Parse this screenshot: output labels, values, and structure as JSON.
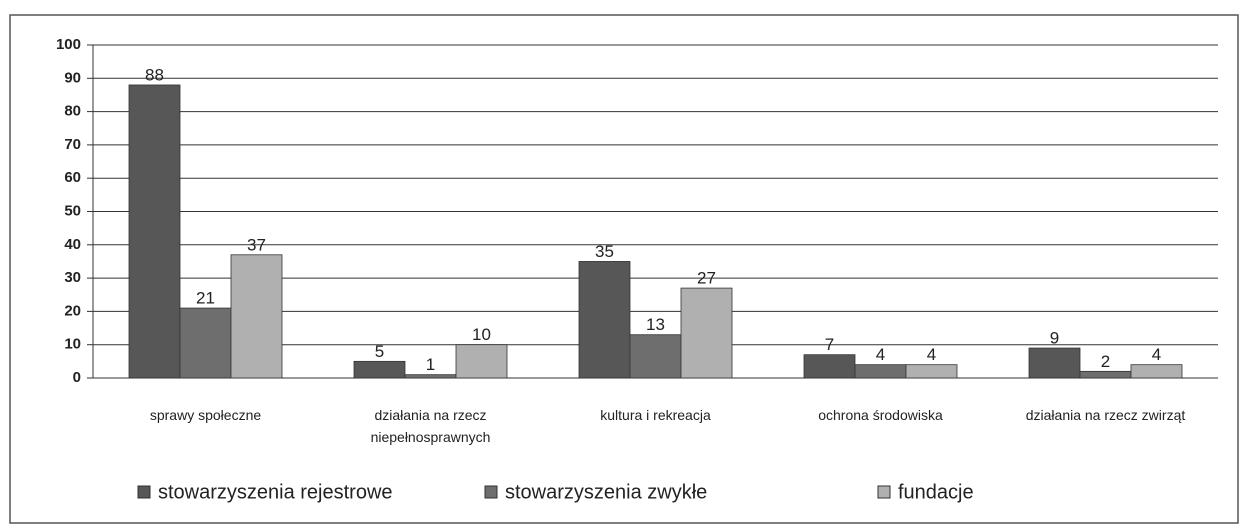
{
  "chart_data": {
    "type": "bar",
    "categories": [
      "sprawy społeczne",
      "działania na rzecz niepełnosprawnych",
      "kultura i rekreacja",
      "ochrona środowiska",
      "działania na rzecz zwirząt"
    ],
    "series": [
      {
        "name": "stowarzyszenia rejestrowe",
        "color": "#575757",
        "values": [
          88,
          5,
          35,
          7,
          9
        ]
      },
      {
        "name": "stowarzyszenia zwykłe",
        "color": "#6e6e6e",
        "values": [
          21,
          1,
          13,
          4,
          2
        ]
      },
      {
        "name": "fundacje",
        "color": "#b0b0b0",
        "values": [
          37,
          10,
          27,
          4,
          4
        ]
      }
    ],
    "ylim": [
      0,
      100
    ],
    "yticks": [
      0,
      10,
      20,
      30,
      40,
      50,
      60,
      70,
      80,
      90,
      100
    ],
    "grid": true
  }
}
